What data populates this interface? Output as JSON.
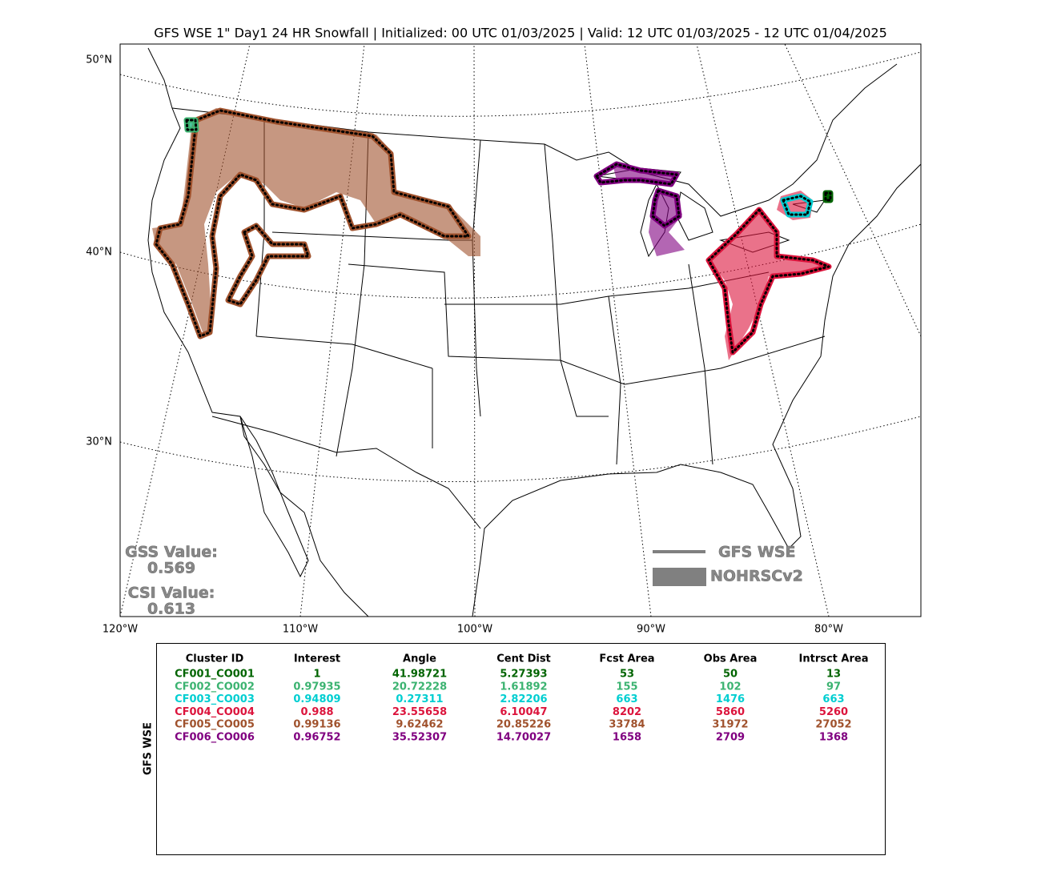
{
  "title": "GFS WSE 1\" Day1 24 HR Snowfall | Initialized: 00 UTC 01/03/2025 | Valid: 12 UTC 01/03/2025 - 12 UTC 01/04/2025",
  "lat_labels": [
    "50°N",
    "40°N",
    "30°N"
  ],
  "lon_labels": [
    "120°W",
    "110°W",
    "100°W",
    "90°W",
    "80°W"
  ],
  "scores": {
    "gss_label": "GSS Value:",
    "gss_value": "0.569",
    "csi_label": "CSI Value:",
    "csi_value": "0.613"
  },
  "legend": {
    "forecast": "GFS WSE",
    "observed": "NOHRSCv2"
  },
  "table": {
    "row_label": "GFS WSE",
    "columns": [
      "Cluster ID",
      "Interest",
      "Angle",
      "Cent Dist",
      "Fcst Area",
      "Obs Area",
      "Intrsct Area"
    ],
    "rows": [
      {
        "color": "#006400",
        "cells": [
          "CF001_CO001",
          1,
          41.98721,
          5.27393,
          53,
          50,
          13
        ]
      },
      {
        "color": "#3cb371",
        "cells": [
          "CF002_CO002",
          0.97935,
          20.72228,
          1.61892,
          155,
          102,
          97
        ]
      },
      {
        "color": "#00ced1",
        "cells": [
          "CF003_CO003",
          0.94809,
          0.27311,
          2.82206,
          663,
          1476,
          663
        ]
      },
      {
        "color": "#dc143c",
        "cells": [
          "CF004_CO004",
          0.988,
          23.55658,
          6.10047,
          8202,
          5860,
          5260
        ]
      },
      {
        "color": "#a0522d",
        "cells": [
          "CF005_CO005",
          0.99136,
          9.62462,
          20.85226,
          33784,
          31972,
          27052
        ]
      },
      {
        "color": "#800080",
        "cells": [
          "CF006_CO006",
          0.96752,
          35.52307,
          14.70027,
          1658,
          2709,
          1368
        ]
      }
    ]
  }
}
